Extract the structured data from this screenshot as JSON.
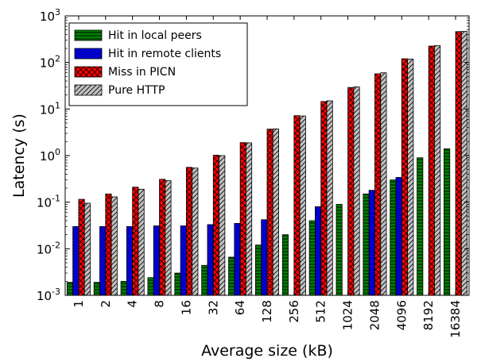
{
  "chart_data": {
    "type": "bar",
    "title": "",
    "xlabel": "Average size (kB)",
    "ylabel": "Latency (s)",
    "y_scale": "log",
    "ylim": [
      0.001,
      1000
    ],
    "y_ticks": [
      {
        "value": 0.001,
        "base": "10",
        "exp": "-3"
      },
      {
        "value": 0.01,
        "base": "10",
        "exp": "-2"
      },
      {
        "value": 0.1,
        "base": "10",
        "exp": "-1"
      },
      {
        "value": 1,
        "base": "10",
        "exp": "0"
      },
      {
        "value": 10,
        "base": "10",
        "exp": "1"
      },
      {
        "value": 100,
        "base": "10",
        "exp": "2"
      },
      {
        "value": 1000,
        "base": "10",
        "exp": "3"
      }
    ],
    "grid": false,
    "legend_position": "top-left",
    "categories": [
      "1",
      "2",
      "4",
      "8",
      "16",
      "32",
      "64",
      "128",
      "256",
      "512",
      "1024",
      "2048",
      "4096",
      "8192",
      "16384"
    ],
    "series": [
      {
        "name": "Hit in local peers",
        "color": "#008000",
        "hatch": "horizontal-lines",
        "values": [
          0.0019,
          0.0019,
          0.002,
          0.0024,
          0.003,
          0.0044,
          0.0066,
          0.012,
          0.02,
          0.04,
          0.09,
          0.15,
          0.3,
          0.9,
          1.4
        ]
      },
      {
        "name": "Hit in remote clients",
        "color": "#0000ff",
        "hatch": "dots",
        "values": [
          0.03,
          0.03,
          0.03,
          0.031,
          0.031,
          0.033,
          0.035,
          0.042,
          null,
          0.08,
          null,
          0.18,
          0.34,
          null,
          null
        ]
      },
      {
        "name": "Miss in PICN",
        "color": "#ff0000",
        "hatch": "crosshatch",
        "values": [
          0.115,
          0.15,
          0.21,
          0.31,
          0.56,
          1.02,
          1.9,
          3.7,
          7.2,
          14.5,
          29,
          57,
          120,
          225,
          460
        ]
      },
      {
        "name": "Pure HTTP",
        "color": "#c0c0c0",
        "hatch": "diagonal",
        "values": [
          0.095,
          0.13,
          0.19,
          0.29,
          0.54,
          1.0,
          1.88,
          3.75,
          7.1,
          15,
          30,
          60,
          118,
          230,
          465
        ]
      }
    ]
  }
}
